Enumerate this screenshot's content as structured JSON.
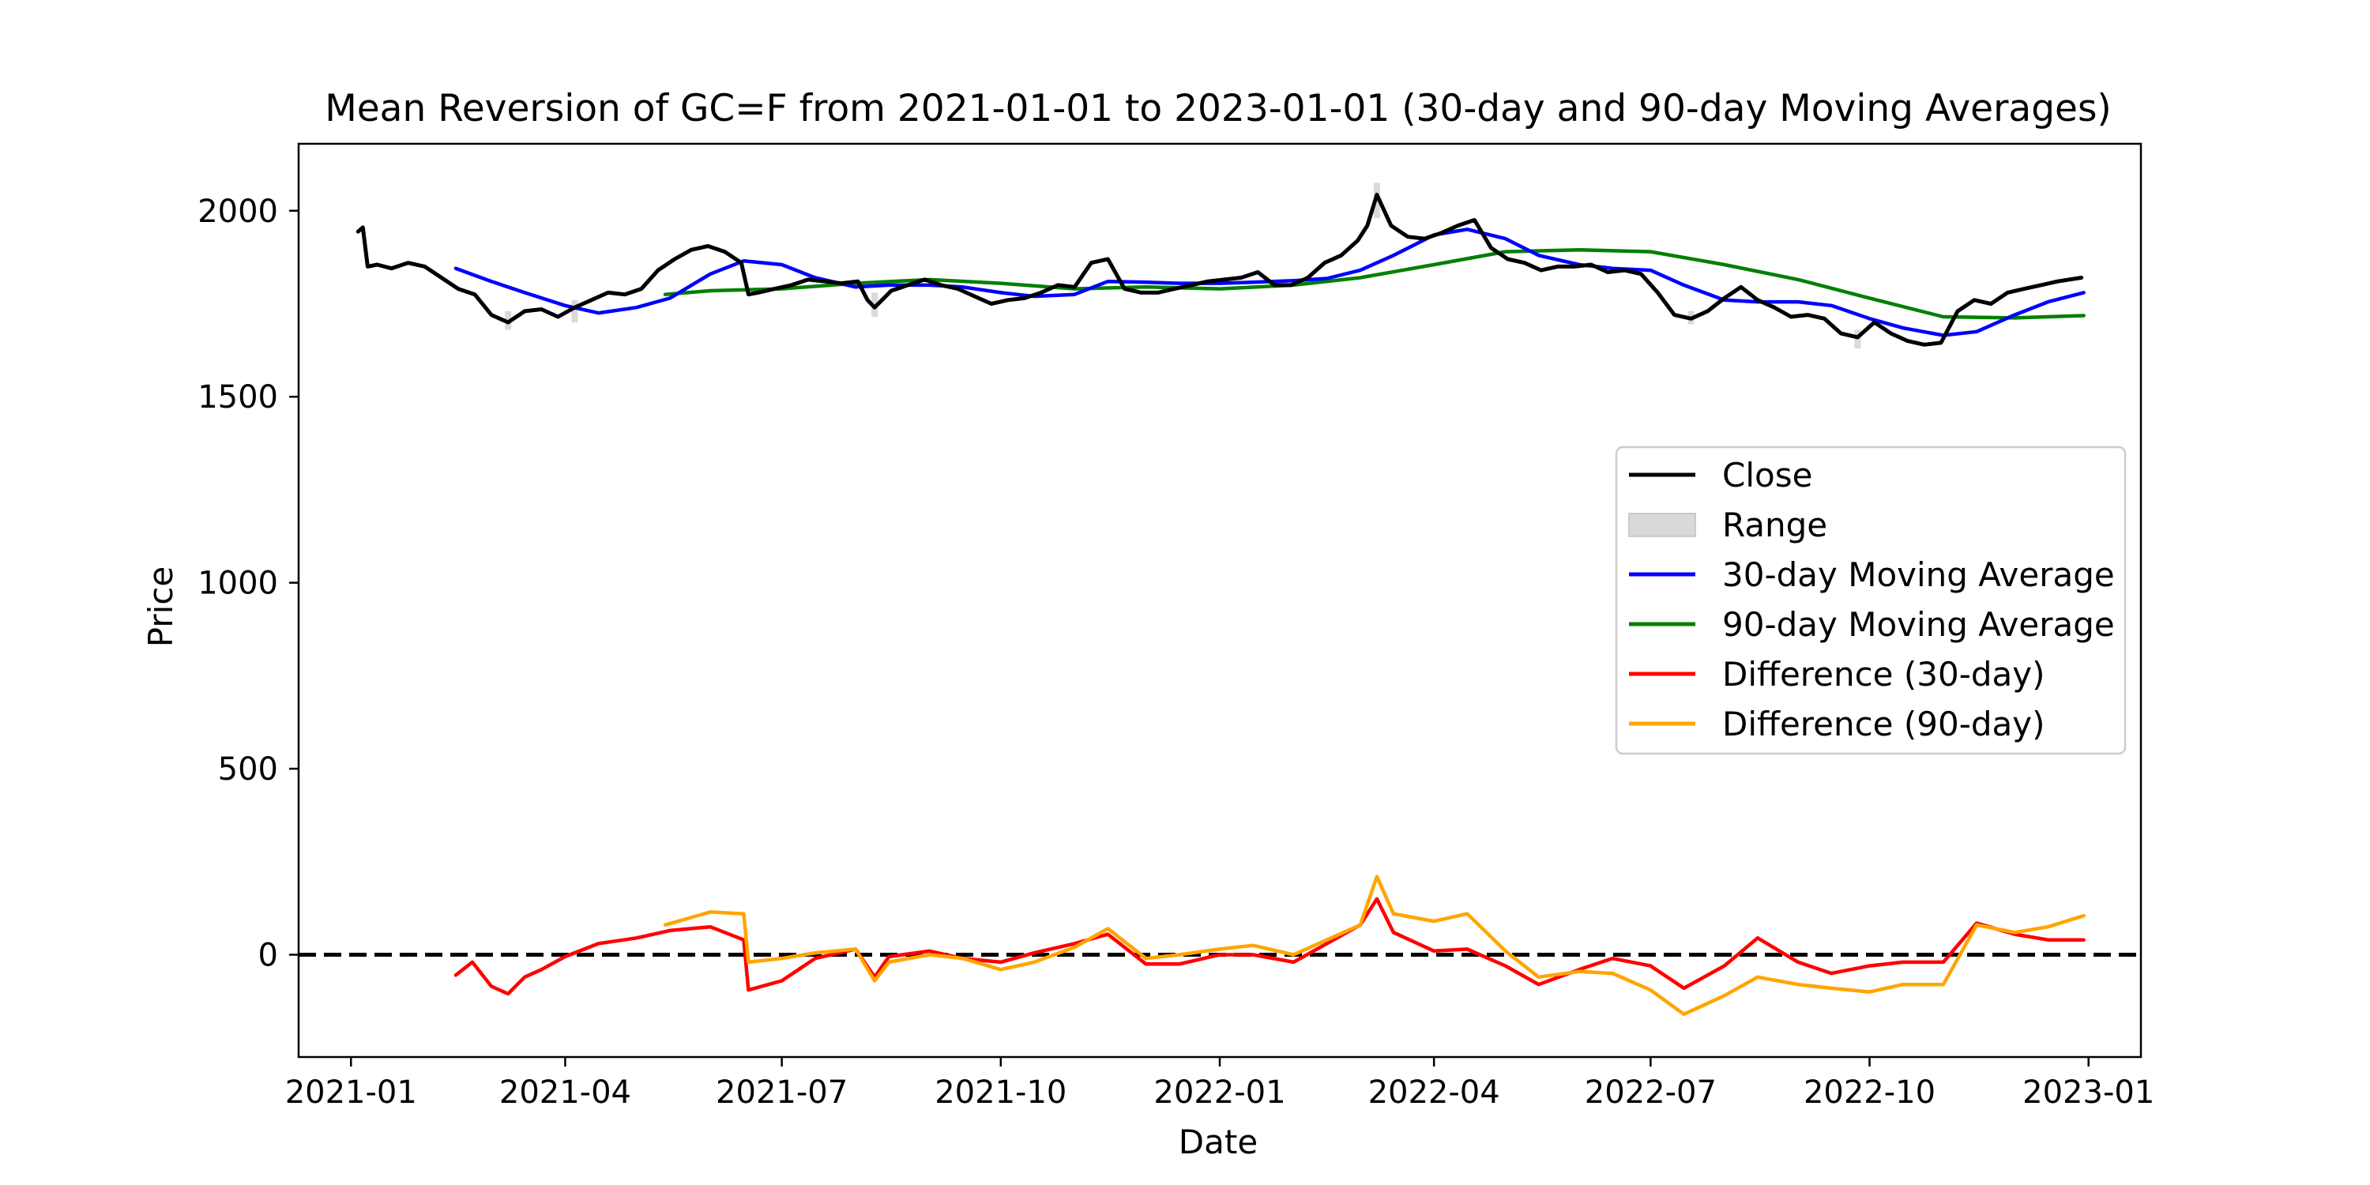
{
  "chart_data": {
    "type": "line",
    "title": "Mean Reversion of GC=F from 2021-01-01 to 2023-01-01 (30-day and 90-day Moving Averages)",
    "xlabel": "Date",
    "ylabel": "Price",
    "xlim": [
      "2020-12-10",
      "2023-01-23"
    ],
    "ylim": [
      -275,
      2180
    ],
    "grid": false,
    "legend_position": "right",
    "x_ticks": [
      "2021-01",
      "2021-04",
      "2021-07",
      "2021-10",
      "2022-01",
      "2022-04",
      "2022-07",
      "2022-10",
      "2023-01"
    ],
    "y_ticks": [
      0,
      500,
      1000,
      1500,
      2000
    ],
    "reference_line": {
      "y": 0,
      "style": "dashed",
      "color": "#000000"
    },
    "colors": {
      "close": "#000000",
      "range": "#d9d9d9",
      "ma30": "#0000ff",
      "ma90": "#008000",
      "diff30": "#ff0000",
      "diff90": "#ffa500"
    },
    "legend": [
      {
        "label": "Close",
        "key": "close",
        "kind": "line"
      },
      {
        "label": "Range",
        "key": "range",
        "kind": "patch"
      },
      {
        "label": "30-day Moving Average",
        "key": "ma30",
        "kind": "line"
      },
      {
        "label": "90-day Moving Average",
        "key": "ma90",
        "kind": "line"
      },
      {
        "label": "Difference (30-day)",
        "key": "diff30",
        "kind": "line"
      },
      {
        "label": "Difference (90-day)",
        "key": "diff90",
        "kind": "line"
      }
    ],
    "series": [
      {
        "name": "Close",
        "key": "close",
        "x": [
          "2021-01-04",
          "2021-01-06",
          "2021-01-08",
          "2021-01-12",
          "2021-01-18",
          "2021-01-25",
          "2021-02-01",
          "2021-02-08",
          "2021-02-15",
          "2021-02-22",
          "2021-03-01",
          "2021-03-08",
          "2021-03-15",
          "2021-03-22",
          "2021-03-29",
          "2021-04-05",
          "2021-04-12",
          "2021-04-19",
          "2021-04-26",
          "2021-05-03",
          "2021-05-10",
          "2021-05-17",
          "2021-05-24",
          "2021-05-31",
          "2021-06-07",
          "2021-06-14",
          "2021-06-17",
          "2021-06-21",
          "2021-06-28",
          "2021-07-05",
          "2021-07-12",
          "2021-07-19",
          "2021-07-26",
          "2021-08-02",
          "2021-08-06",
          "2021-08-09",
          "2021-08-16",
          "2021-08-23",
          "2021-08-30",
          "2021-09-06",
          "2021-09-13",
          "2021-09-20",
          "2021-09-27",
          "2021-10-04",
          "2021-10-11",
          "2021-10-18",
          "2021-10-25",
          "2021-11-01",
          "2021-11-08",
          "2021-11-15",
          "2021-11-22",
          "2021-11-29",
          "2021-12-06",
          "2021-12-13",
          "2021-12-20",
          "2021-12-27",
          "2022-01-03",
          "2022-01-10",
          "2022-01-17",
          "2022-01-24",
          "2022-01-31",
          "2022-02-07",
          "2022-02-14",
          "2022-02-21",
          "2022-02-28",
          "2022-03-04",
          "2022-03-08",
          "2022-03-14",
          "2022-03-21",
          "2022-03-28",
          "2022-04-04",
          "2022-04-11",
          "2022-04-18",
          "2022-04-25",
          "2022-05-02",
          "2022-05-09",
          "2022-05-16",
          "2022-05-23",
          "2022-05-30",
          "2022-06-06",
          "2022-06-13",
          "2022-06-20",
          "2022-06-27",
          "2022-07-04",
          "2022-07-11",
          "2022-07-18",
          "2022-07-25",
          "2022-08-01",
          "2022-08-08",
          "2022-08-15",
          "2022-08-22",
          "2022-08-29",
          "2022-09-05",
          "2022-09-12",
          "2022-09-19",
          "2022-09-26",
          "2022-10-03",
          "2022-10-10",
          "2022-10-17",
          "2022-10-24",
          "2022-10-31",
          "2022-11-07",
          "2022-11-14",
          "2022-11-21",
          "2022-11-28",
          "2022-12-05",
          "2022-12-12",
          "2022-12-19",
          "2022-12-29"
        ],
        "y": [
          1944,
          1955,
          1850,
          1855,
          1845,
          1860,
          1850,
          1820,
          1790,
          1775,
          1720,
          1700,
          1730,
          1735,
          1715,
          1740,
          1760,
          1780,
          1775,
          1790,
          1840,
          1870,
          1895,
          1905,
          1890,
          1860,
          1775,
          1780,
          1790,
          1800,
          1815,
          1810,
          1805,
          1810,
          1760,
          1740,
          1785,
          1800,
          1815,
          1800,
          1790,
          1770,
          1750,
          1760,
          1765,
          1780,
          1800,
          1795,
          1860,
          1870,
          1790,
          1780,
          1780,
          1790,
          1800,
          1810,
          1815,
          1820,
          1835,
          1800,
          1800,
          1820,
          1860,
          1880,
          1920,
          1960,
          2043,
          1960,
          1930,
          1925,
          1940,
          1960,
          1975,
          1900,
          1870,
          1860,
          1840,
          1850,
          1850,
          1855,
          1835,
          1840,
          1830,
          1780,
          1720,
          1710,
          1730,
          1765,
          1795,
          1760,
          1740,
          1715,
          1720,
          1710,
          1670,
          1660,
          1700,
          1670,
          1650,
          1640,
          1645,
          1730,
          1760,
          1750,
          1780,
          1790,
          1800,
          1810,
          1820
        ]
      },
      {
        "name": "Range",
        "key": "range",
        "x": [
          "2021-03-08",
          "2021-04-05",
          "2021-08-09",
          "2022-03-08",
          "2022-07-18",
          "2022-09-26"
        ],
        "low": [
          1680,
          1700,
          1715,
          1980,
          1695,
          1630
        ],
        "high": [
          1730,
          1760,
          1780,
          2075,
          1730,
          1680
        ]
      },
      {
        "name": "30-day Moving Average",
        "key": "ma30",
        "x": [
          "2021-02-14",
          "2021-03-01",
          "2021-03-15",
          "2021-04-01",
          "2021-04-15",
          "2021-05-01",
          "2021-05-15",
          "2021-06-01",
          "2021-06-15",
          "2021-07-01",
          "2021-07-15",
          "2021-08-01",
          "2021-08-15",
          "2021-09-01",
          "2021-09-15",
          "2021-10-01",
          "2021-10-15",
          "2021-11-01",
          "2021-11-15",
          "2021-12-01",
          "2021-12-15",
          "2022-01-01",
          "2022-01-15",
          "2022-02-01",
          "2022-02-15",
          "2022-03-01",
          "2022-03-15",
          "2022-04-01",
          "2022-04-15",
          "2022-05-01",
          "2022-05-15",
          "2022-06-01",
          "2022-06-15",
          "2022-07-01",
          "2022-07-15",
          "2022-08-01",
          "2022-08-15",
          "2022-09-01",
          "2022-09-15",
          "2022-10-01",
          "2022-10-15",
          "2022-11-01",
          "2022-11-15",
          "2022-12-01",
          "2022-12-15",
          "2022-12-30"
        ],
        "y": [
          1845,
          1810,
          1780,
          1745,
          1725,
          1740,
          1765,
          1830,
          1865,
          1855,
          1820,
          1795,
          1800,
          1800,
          1795,
          1780,
          1770,
          1775,
          1810,
          1808,
          1805,
          1805,
          1808,
          1812,
          1818,
          1840,
          1880,
          1935,
          1950,
          1925,
          1880,
          1855,
          1845,
          1840,
          1800,
          1760,
          1755,
          1755,
          1745,
          1710,
          1685,
          1665,
          1675,
          1720,
          1755,
          1780
        ]
      },
      {
        "name": "90-day Moving Average",
        "key": "ma90",
        "x": [
          "2021-05-13",
          "2021-06-01",
          "2021-07-01",
          "2021-08-01",
          "2021-09-01",
          "2021-10-01",
          "2021-11-01",
          "2021-12-01",
          "2022-01-01",
          "2022-02-01",
          "2022-03-01",
          "2022-04-01",
          "2022-05-01",
          "2022-06-01",
          "2022-07-01",
          "2022-08-01",
          "2022-09-01",
          "2022-10-01",
          "2022-11-01",
          "2022-12-01",
          "2022-12-30"
        ],
        "y": [
          1775,
          1785,
          1790,
          1805,
          1815,
          1805,
          1790,
          1795,
          1790,
          1800,
          1820,
          1855,
          1890,
          1895,
          1890,
          1855,
          1815,
          1765,
          1715,
          1712,
          1718
        ]
      },
      {
        "name": "Difference (30-day)",
        "key": "diff30",
        "x": [
          "2021-02-14",
          "2021-02-21",
          "2021-03-01",
          "2021-03-08",
          "2021-03-15",
          "2021-03-22",
          "2021-04-01",
          "2021-04-15",
          "2021-05-01",
          "2021-05-15",
          "2021-06-01",
          "2021-06-15",
          "2021-06-17",
          "2021-07-01",
          "2021-07-15",
          "2021-08-01",
          "2021-08-09",
          "2021-08-15",
          "2021-09-01",
          "2021-09-15",
          "2021-10-01",
          "2021-10-15",
          "2021-11-01",
          "2021-11-15",
          "2021-12-01",
          "2021-12-15",
          "2022-01-01",
          "2022-01-15",
          "2022-02-01",
          "2022-02-15",
          "2022-03-01",
          "2022-03-08",
          "2022-03-15",
          "2022-04-01",
          "2022-04-15",
          "2022-05-01",
          "2022-05-15",
          "2022-06-01",
          "2022-06-15",
          "2022-07-01",
          "2022-07-15",
          "2022-08-01",
          "2022-08-15",
          "2022-09-01",
          "2022-09-15",
          "2022-10-01",
          "2022-10-15",
          "2022-11-01",
          "2022-11-15",
          "2022-12-01",
          "2022-12-15",
          "2022-12-30"
        ],
        "y": [
          -55,
          -20,
          -85,
          -105,
          -60,
          -40,
          -5,
          30,
          45,
          65,
          75,
          40,
          -95,
          -70,
          -10,
          15,
          -60,
          -5,
          10,
          -10,
          -20,
          5,
          30,
          55,
          -25,
          -25,
          0,
          0,
          -20,
          30,
          80,
          150,
          60,
          10,
          15,
          -30,
          -80,
          -40,
          -10,
          -30,
          -90,
          -30,
          45,
          -20,
          -50,
          -30,
          -20,
          -20,
          85,
          55,
          40,
          40
        ]
      },
      {
        "name": "Difference (90-day)",
        "key": "diff90",
        "x": [
          "2021-05-13",
          "2021-06-01",
          "2021-06-15",
          "2021-06-17",
          "2021-07-01",
          "2021-07-15",
          "2021-08-01",
          "2021-08-09",
          "2021-08-15",
          "2021-09-01",
          "2021-09-15",
          "2021-10-01",
          "2021-10-15",
          "2021-11-01",
          "2021-11-15",
          "2021-12-01",
          "2021-12-15",
          "2022-01-01",
          "2022-01-15",
          "2022-02-01",
          "2022-02-15",
          "2022-03-01",
          "2022-03-08",
          "2022-03-15",
          "2022-04-01",
          "2022-04-15",
          "2022-05-01",
          "2022-05-15",
          "2022-06-01",
          "2022-06-15",
          "2022-07-01",
          "2022-07-15",
          "2022-08-01",
          "2022-08-15",
          "2022-09-01",
          "2022-09-15",
          "2022-10-01",
          "2022-10-15",
          "2022-11-01",
          "2022-11-15",
          "2022-12-01",
          "2022-12-15",
          "2022-12-30"
        ],
        "y": [
          80,
          115,
          110,
          -20,
          -10,
          5,
          15,
          -70,
          -20,
          0,
          -10,
          -40,
          -20,
          20,
          70,
          -10,
          0,
          15,
          25,
          0,
          40,
          80,
          210,
          110,
          90,
          110,
          10,
          -60,
          -45,
          -50,
          -95,
          -160,
          -110,
          -60,
          -80,
          -90,
          -100,
          -80,
          -80,
          80,
          60,
          75,
          105
        ]
      }
    ]
  }
}
